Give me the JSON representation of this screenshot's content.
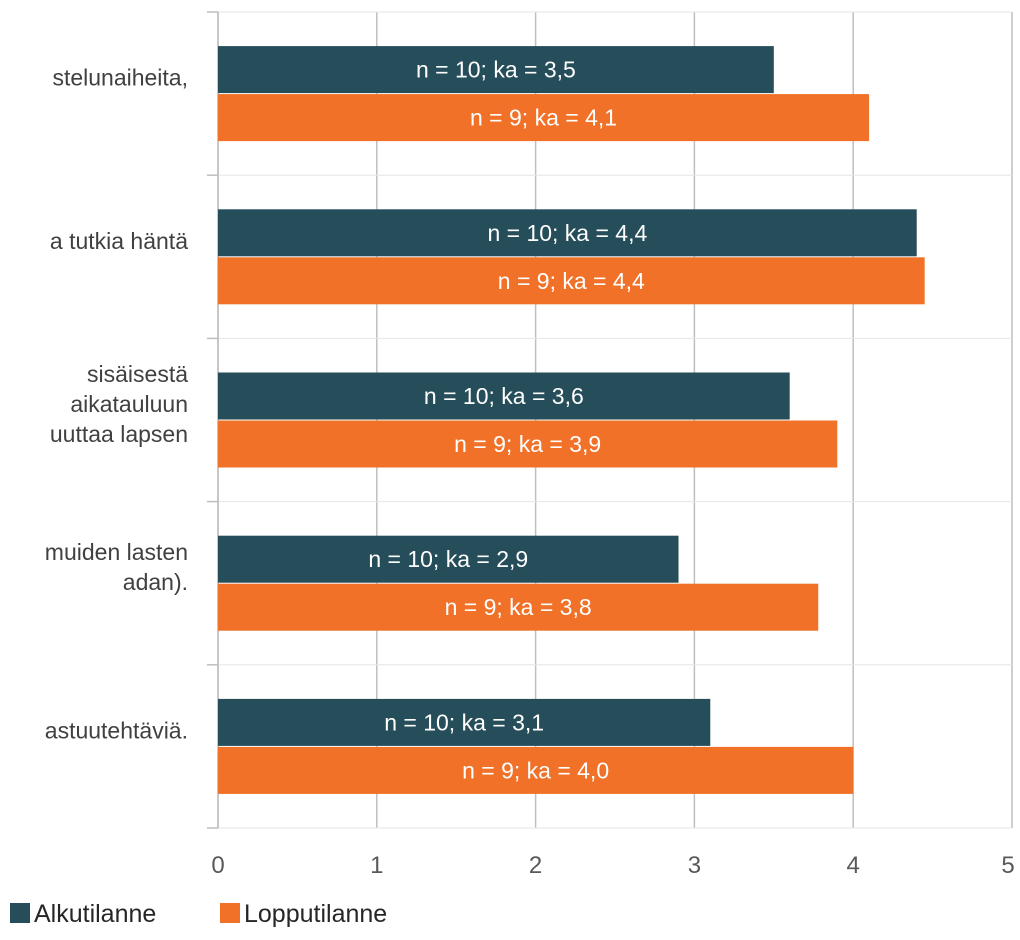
{
  "chart_data": {
    "type": "bar",
    "orientation": "horizontal",
    "categories": [
      [
        "stelunaiheita,"
      ],
      [
        "a tutkia häntä"
      ],
      [
        "sisäisestä",
        "aikatauluun",
        "uuttaa lapsen"
      ],
      [
        "muiden lasten",
        "adan)."
      ],
      [
        "astuutehtäviä."
      ]
    ],
    "series": [
      {
        "name": "Alkutilanne",
        "color": "#264d5a",
        "values": [
          3.5,
          4.4,
          3.6,
          2.9,
          3.1
        ],
        "labels": [
          "n = 10; ka = 3,5",
          "n = 10; ka = 4,4",
          "n = 10; ka = 3,6",
          "n = 10; ka = 2,9",
          "n = 10; ka = 3,1"
        ]
      },
      {
        "name": "Lopputilanne",
        "color": "#f07127",
        "values": [
          4.1,
          4.45,
          3.9,
          3.78,
          4.0
        ],
        "labels": [
          "n = 9; ka = 4,1",
          "n = 9; ka = 4,4",
          "n = 9; ka = 3,9",
          "n = 9; ka = 3,8",
          "n = 9; ka = 4,0"
        ]
      }
    ],
    "xlim": [
      0,
      5
    ],
    "xticks": [
      "0",
      "1",
      "2",
      "3",
      "4",
      "5"
    ],
    "grid": true,
    "legend": "bottom-left"
  }
}
